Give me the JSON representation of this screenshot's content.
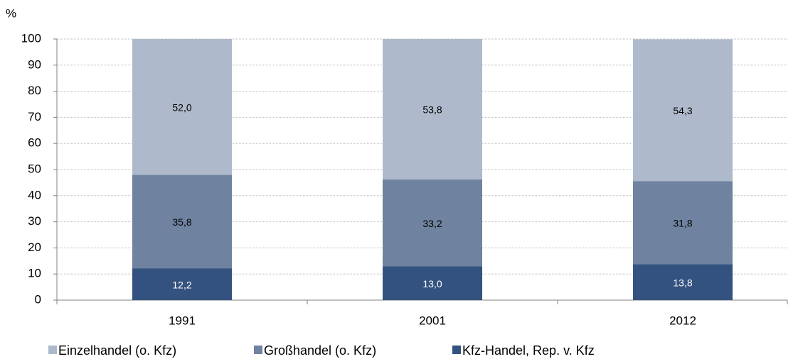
{
  "chart_data": {
    "type": "stacked_bar",
    "y_label": "%",
    "categories": [
      "1991",
      "2001",
      "2012"
    ],
    "series": [
      {
        "name": "Einzelhandel (o. Kfz)",
        "color": "#aebacb",
        "values": [
          52.0,
          53.8,
          54.3
        ],
        "value_labels": [
          "52,0",
          "53,8",
          "54,3"
        ],
        "label_color": "#000000"
      },
      {
        "name": "Großhandel (o. Kfz)",
        "color": "#6f83a0",
        "values": [
          35.8,
          33.2,
          31.8
        ],
        "value_labels": [
          "35,8",
          "33,2",
          "31,8"
        ],
        "label_color": "#000000"
      },
      {
        "name": "Kfz-Handel, Rep. v. Kfz",
        "color": "#34527f",
        "values": [
          12.2,
          13.0,
          13.8
        ],
        "value_labels": [
          "12,2",
          "13,0",
          "13,8"
        ],
        "label_color": "#ffffff"
      }
    ],
    "ylim": [
      0,
      100
    ],
    "yticks": [
      0,
      10,
      20,
      30,
      40,
      50,
      60,
      70,
      80,
      90,
      100
    ],
    "grid": true
  }
}
